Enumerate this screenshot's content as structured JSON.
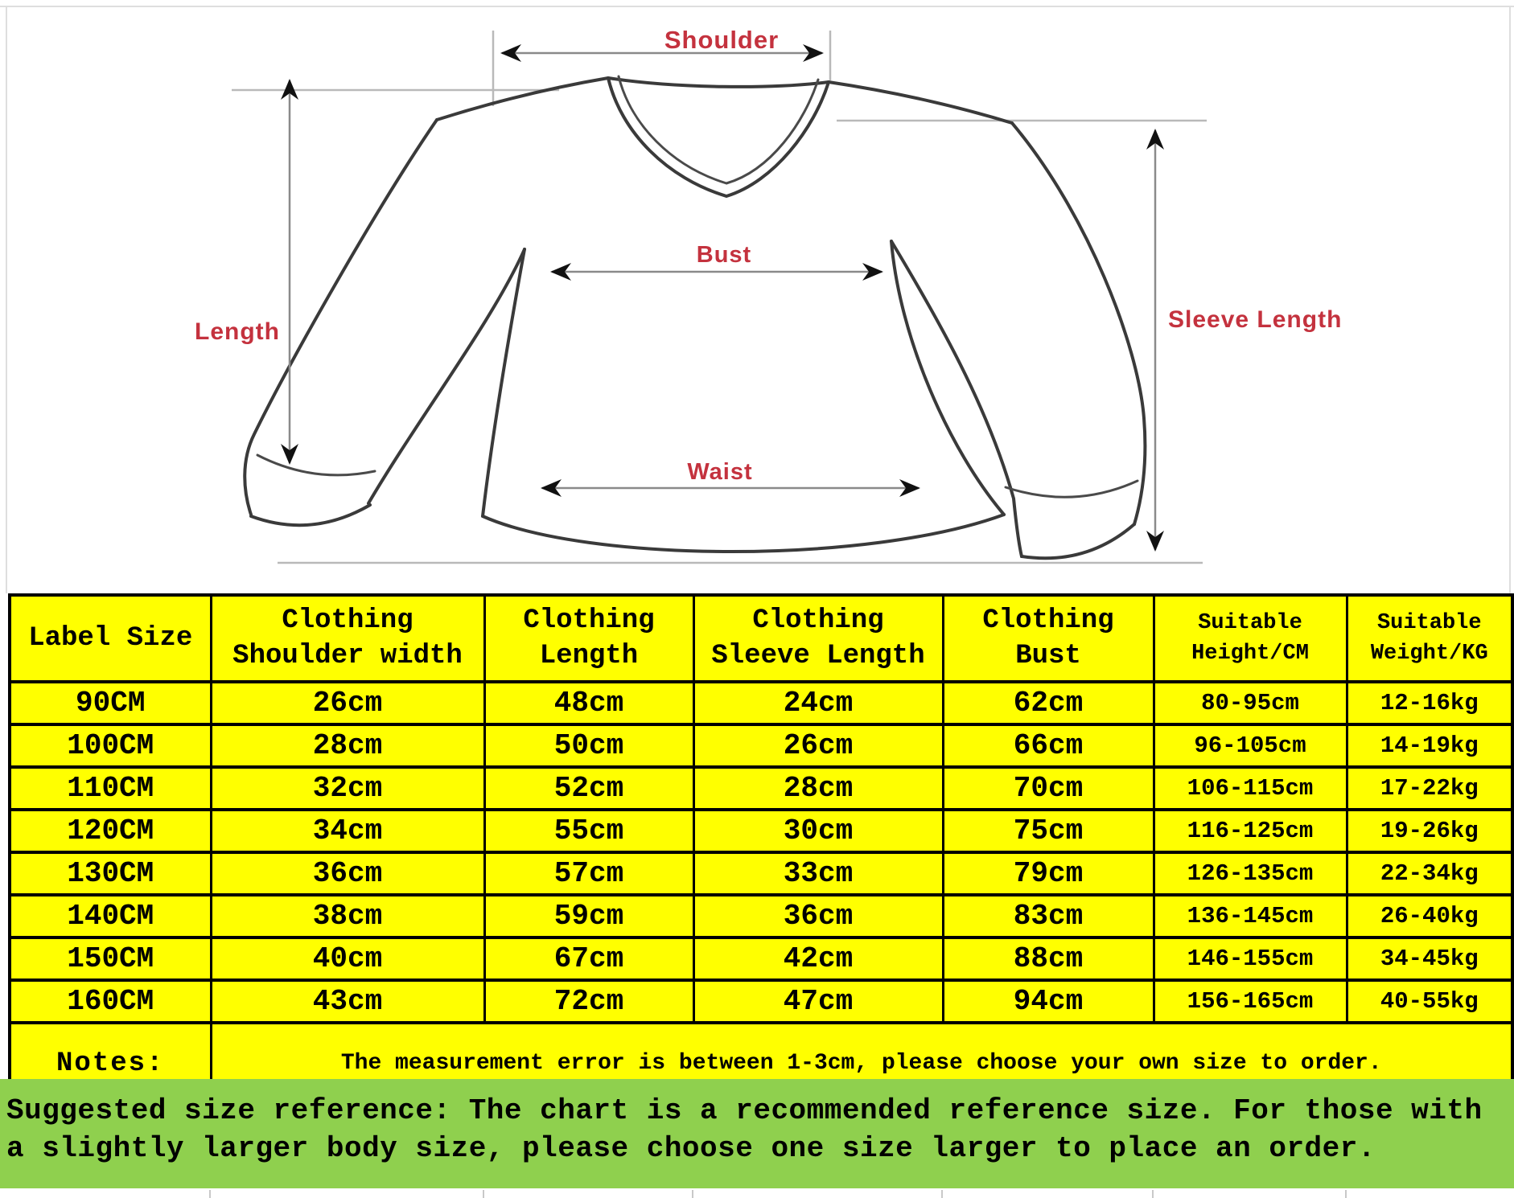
{
  "diagram": {
    "labels": {
      "shoulder": "Shoulder",
      "length": "Length",
      "sleeve_length": "Sleeve Length",
      "bust": "Bust",
      "waist": "Waist"
    },
    "label_color": "#c4323e"
  },
  "table": {
    "headers": [
      [
        "Label Size"
      ],
      [
        "Clothing",
        "Shoulder width"
      ],
      [
        "Clothing",
        "Length"
      ],
      [
        "Clothing",
        "Sleeve Length"
      ],
      [
        "Clothing",
        "Bust"
      ],
      [
        "Suitable",
        "Height/CM"
      ],
      [
        "Suitable",
        "Weight/KG"
      ]
    ],
    "rows": [
      [
        "90CM",
        "26cm",
        "48cm",
        "24cm",
        "62cm",
        "80-95cm",
        "12-16kg"
      ],
      [
        "100CM",
        "28cm",
        "50cm",
        "26cm",
        "66cm",
        "96-105cm",
        "14-19kg"
      ],
      [
        "110CM",
        "32cm",
        "52cm",
        "28cm",
        "70cm",
        "106-115cm",
        "17-22kg"
      ],
      [
        "120CM",
        "34cm",
        "55cm",
        "30cm",
        "75cm",
        "116-125cm",
        "19-26kg"
      ],
      [
        "130CM",
        "36cm",
        "57cm",
        "33cm",
        "79cm",
        "126-135cm",
        "22-34kg"
      ],
      [
        "140CM",
        "38cm",
        "59cm",
        "36cm",
        "83cm",
        "136-145cm",
        "26-40kg"
      ],
      [
        "150CM",
        "40cm",
        "67cm",
        "42cm",
        "88cm",
        "146-155cm",
        "34-45kg"
      ],
      [
        "160CM",
        "43cm",
        "72cm",
        "47cm",
        "94cm",
        "156-165cm",
        "40-55kg"
      ]
    ],
    "notes_label": "Notes:",
    "notes_text": "The measurement error is between 1-3cm, please choose your own size to order.",
    "colors": {
      "cell_bg": "#ffff00",
      "notes_bg": "#8fd04e",
      "border": "#000000"
    }
  },
  "footer": {
    "line1": "Suggested size reference: The chart is a recommended reference size. For those with",
    "line2": "a slightly larger body size, please choose one size larger to place an order.",
    "bg": "#8fd04e"
  }
}
